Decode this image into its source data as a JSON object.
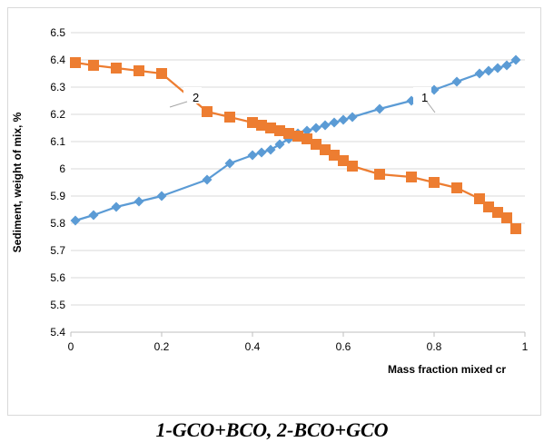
{
  "caption": "1-GCO+BCO, 2-BCO+GCO",
  "chart_data": {
    "type": "line",
    "title": "",
    "xlabel": "Mass fraction mixed cr",
    "ylabel": "Sediment, weight of mix, %",
    "xlim": [
      0,
      1
    ],
    "ylim": [
      5.4,
      6.5
    ],
    "x_ticks": [
      "0",
      "0.2",
      "0.4",
      "0.6",
      "0.8",
      "1"
    ],
    "y_ticks": [
      "5.4",
      "5.5",
      "5.6",
      "5.7",
      "5.8",
      "5.9",
      "6",
      "6.1",
      "6.2",
      "6.3",
      "6.4",
      "6.5"
    ],
    "grid": "horizontal",
    "series": [
      {
        "label": "1",
        "color": "#5b9bd5",
        "marker": "diamond",
        "x": [
          0.01,
          0.05,
          0.1,
          0.15,
          0.2,
          0.3,
          0.35,
          0.4,
          0.42,
          0.44,
          0.46,
          0.48,
          0.5,
          0.52,
          0.54,
          0.56,
          0.58,
          0.6,
          0.62,
          0.68,
          0.75,
          0.8,
          0.85,
          0.9,
          0.92,
          0.94,
          0.96,
          0.98
        ],
        "y": [
          5.81,
          5.83,
          5.86,
          5.88,
          5.9,
          5.96,
          6.02,
          6.05,
          6.06,
          6.07,
          6.09,
          6.11,
          6.13,
          6.14,
          6.15,
          6.16,
          6.17,
          6.18,
          6.19,
          6.22,
          6.25,
          6.29,
          6.32,
          6.35,
          6.36,
          6.37,
          6.38,
          6.4
        ]
      },
      {
        "label": "2",
        "color": "#ed7d31",
        "marker": "square",
        "x": [
          0.01,
          0.05,
          0.1,
          0.15,
          0.2,
          0.3,
          0.35,
          0.4,
          0.42,
          0.44,
          0.46,
          0.48,
          0.5,
          0.52,
          0.54,
          0.56,
          0.58,
          0.6,
          0.62,
          0.68,
          0.75,
          0.8,
          0.85,
          0.9,
          0.92,
          0.94,
          0.96,
          0.98
        ],
        "y": [
          6.39,
          6.38,
          6.37,
          6.36,
          6.35,
          6.21,
          6.19,
          6.17,
          6.16,
          6.15,
          6.14,
          6.13,
          6.12,
          6.11,
          6.09,
          6.07,
          6.05,
          6.03,
          6.01,
          5.98,
          5.97,
          5.95,
          5.93,
          5.89,
          5.86,
          5.84,
          5.82,
          5.78
        ]
      }
    ]
  }
}
